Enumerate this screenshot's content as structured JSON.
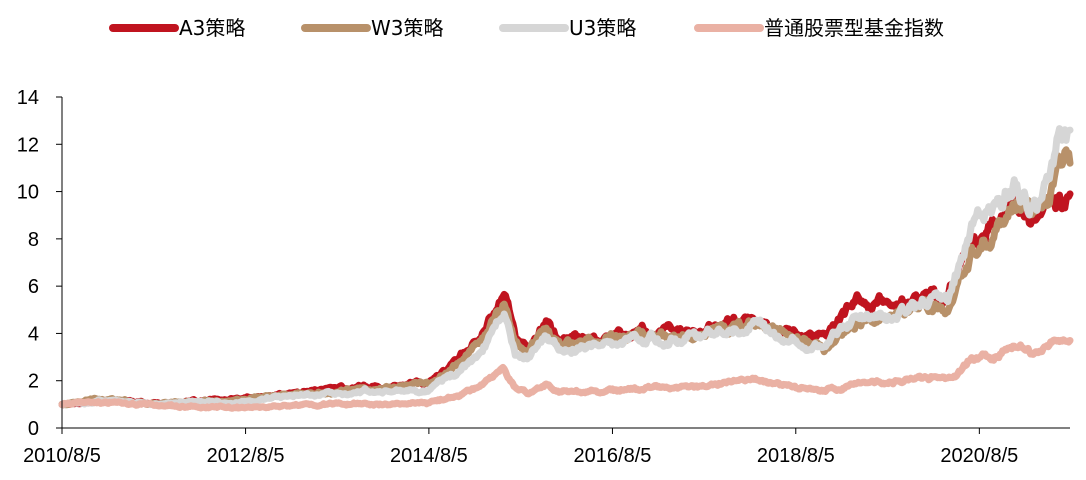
{
  "chart_data": {
    "type": "line",
    "title": "",
    "xlabel": "",
    "ylabel": "",
    "ylim": [
      0,
      14
    ],
    "yticks": [
      0,
      2,
      4,
      6,
      8,
      10,
      12,
      14
    ],
    "xlim": [
      "2010-08-05",
      "2021-08-01"
    ],
    "x_tick_labels": [
      "2010/8/5",
      "2012/8/5",
      "2014/8/5",
      "2016/8/5",
      "2018/8/5",
      "2020/8/5"
    ],
    "x_tick_dates": [
      "2010-08-05",
      "2012-08-05",
      "2014-08-05",
      "2016-08-05",
      "2018-08-05",
      "2020-08-05"
    ],
    "grid": false,
    "legend_position": "top",
    "series": [
      {
        "name": "A3策略",
        "color": "#c0141f",
        "points": [
          [
            "2010-08-05",
            1.0
          ],
          [
            "2011-01-01",
            1.18
          ],
          [
            "2011-08-01",
            1.05
          ],
          [
            "2012-01-01",
            1.1
          ],
          [
            "2012-08-01",
            1.22
          ],
          [
            "2013-02-01",
            1.45
          ],
          [
            "2013-08-01",
            1.68
          ],
          [
            "2014-02-01",
            1.75
          ],
          [
            "2014-08-01",
            1.9
          ],
          [
            "2014-12-01",
            2.9
          ],
          [
            "2015-03-01",
            3.9
          ],
          [
            "2015-06-01",
            6.0
          ],
          [
            "2015-07-15",
            3.8
          ],
          [
            "2015-09-01",
            3.4
          ],
          [
            "2015-11-15",
            4.5
          ],
          [
            "2016-01-15",
            3.7
          ],
          [
            "2016-06-01",
            3.9
          ],
          [
            "2016-12-01",
            4.1
          ],
          [
            "2017-06-01",
            4.0
          ],
          [
            "2017-12-01",
            4.45
          ],
          [
            "2018-03-01",
            4.5
          ],
          [
            "2018-08-01",
            4.05
          ],
          [
            "2018-12-01",
            3.75
          ],
          [
            "2019-04-01",
            5.3
          ],
          [
            "2019-09-01",
            5.2
          ],
          [
            "2020-01-01",
            5.6
          ],
          [
            "2020-04-01",
            5.5
          ],
          [
            "2020-07-15",
            8.2
          ],
          [
            "2020-10-01",
            8.6
          ],
          [
            "2021-01-01",
            9.6
          ],
          [
            "2021-02-15",
            9.1
          ],
          [
            "2021-04-01",
            8.8
          ],
          [
            "2021-06-15",
            10.1
          ],
          [
            "2021-08-01",
            9.9
          ]
        ]
      },
      {
        "name": "W3策略",
        "color": "#b8916a",
        "points": [
          [
            "2010-08-05",
            1.0
          ],
          [
            "2011-01-01",
            1.2
          ],
          [
            "2011-08-01",
            1.07
          ],
          [
            "2012-01-01",
            1.1
          ],
          [
            "2012-08-01",
            1.2
          ],
          [
            "2013-02-01",
            1.42
          ],
          [
            "2013-08-01",
            1.62
          ],
          [
            "2014-02-01",
            1.7
          ],
          [
            "2014-08-01",
            1.85
          ],
          [
            "2014-12-01",
            2.75
          ],
          [
            "2015-03-01",
            3.6
          ],
          [
            "2015-06-01",
            5.2
          ],
          [
            "2015-07-15",
            3.6
          ],
          [
            "2015-09-01",
            3.25
          ],
          [
            "2015-11-15",
            4.2
          ],
          [
            "2016-01-15",
            3.55
          ],
          [
            "2016-06-01",
            3.75
          ],
          [
            "2016-12-01",
            3.95
          ],
          [
            "2017-06-01",
            3.9
          ],
          [
            "2017-12-01",
            4.3
          ],
          [
            "2018-03-01",
            4.3
          ],
          [
            "2018-08-01",
            3.8
          ],
          [
            "2018-12-01",
            3.3
          ],
          [
            "2019-04-01",
            4.6
          ],
          [
            "2019-09-01",
            4.7
          ],
          [
            "2020-01-01",
            5.1
          ],
          [
            "2020-04-01",
            5.0
          ],
          [
            "2020-07-15",
            7.7
          ],
          [
            "2020-10-01",
            8.1
          ],
          [
            "2021-01-01",
            9.5
          ],
          [
            "2021-02-15",
            9.2
          ],
          [
            "2021-04-01",
            9.0
          ],
          [
            "2021-06-15",
            11.0
          ],
          [
            "2021-08-01",
            11.2
          ]
        ]
      },
      {
        "name": "U3策略",
        "color": "#d6d6d6",
        "points": [
          [
            "2010-08-05",
            1.0
          ],
          [
            "2011-01-01",
            1.15
          ],
          [
            "2011-08-01",
            1.02
          ],
          [
            "2012-01-01",
            1.05
          ],
          [
            "2012-08-01",
            1.12
          ],
          [
            "2013-02-01",
            1.35
          ],
          [
            "2013-08-01",
            1.52
          ],
          [
            "2014-02-01",
            1.55
          ],
          [
            "2014-08-01",
            1.65
          ],
          [
            "2014-12-01",
            2.4
          ],
          [
            "2015-03-01",
            3.1
          ],
          [
            "2015-06-01",
            4.8
          ],
          [
            "2015-07-15",
            3.1
          ],
          [
            "2015-09-01",
            3.0
          ],
          [
            "2015-11-15",
            3.8
          ],
          [
            "2016-01-15",
            3.3
          ],
          [
            "2016-06-01",
            3.5
          ],
          [
            "2016-12-01",
            3.75
          ],
          [
            "2017-06-01",
            3.75
          ],
          [
            "2017-12-01",
            4.3
          ],
          [
            "2018-03-01",
            4.35
          ],
          [
            "2018-08-01",
            3.9
          ],
          [
            "2018-12-01",
            3.4
          ],
          [
            "2019-04-01",
            4.8
          ],
          [
            "2019-09-01",
            4.9
          ],
          [
            "2020-01-01",
            5.3
          ],
          [
            "2020-04-01",
            5.4
          ],
          [
            "2020-07-15",
            8.8
          ],
          [
            "2020-10-01",
            9.0
          ],
          [
            "2021-01-01",
            10.6
          ],
          [
            "2021-02-15",
            9.6
          ],
          [
            "2021-04-01",
            9.5
          ],
          [
            "2021-06-15",
            11.8
          ],
          [
            "2021-08-01",
            12.6
          ]
        ]
      },
      {
        "name": "普通股票型基金指数",
        "color": "#eab1a4",
        "points": [
          [
            "2010-08-05",
            1.0
          ],
          [
            "2011-01-01",
            1.1
          ],
          [
            "2011-08-01",
            0.98
          ],
          [
            "2012-01-01",
            0.9
          ],
          [
            "2012-08-01",
            0.85
          ],
          [
            "2013-02-01",
            0.95
          ],
          [
            "2013-08-01",
            1.02
          ],
          [
            "2014-02-01",
            1.0
          ],
          [
            "2014-08-01",
            1.05
          ],
          [
            "2014-12-01",
            1.35
          ],
          [
            "2015-03-01",
            1.8
          ],
          [
            "2015-06-01",
            2.55
          ],
          [
            "2015-07-15",
            1.75
          ],
          [
            "2015-09-01",
            1.5
          ],
          [
            "2015-11-15",
            1.8
          ],
          [
            "2016-01-15",
            1.5
          ],
          [
            "2016-06-01",
            1.55
          ],
          [
            "2016-12-01",
            1.65
          ],
          [
            "2017-06-01",
            1.7
          ],
          [
            "2017-12-01",
            1.95
          ],
          [
            "2018-03-01",
            1.95
          ],
          [
            "2018-08-01",
            1.75
          ],
          [
            "2018-12-01",
            1.55
          ],
          [
            "2019-04-01",
            1.9
          ],
          [
            "2019-09-01",
            1.95
          ],
          [
            "2020-01-01",
            2.2
          ],
          [
            "2020-04-01",
            2.15
          ],
          [
            "2020-07-15",
            2.9
          ],
          [
            "2020-10-01",
            3.0
          ],
          [
            "2021-01-01",
            3.55
          ],
          [
            "2021-02-15",
            3.3
          ],
          [
            "2021-04-01",
            3.2
          ],
          [
            "2021-06-15",
            3.65
          ],
          [
            "2021-08-01",
            3.7
          ]
        ]
      }
    ]
  }
}
